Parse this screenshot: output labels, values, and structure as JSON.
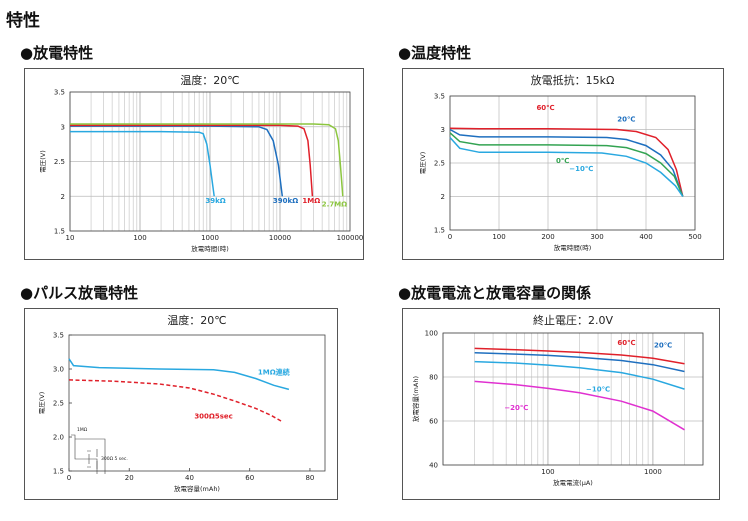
{
  "page": {
    "title": "特性"
  },
  "sections": [
    {
      "heading": "●放電特性"
    },
    {
      "heading": "●温度特性"
    },
    {
      "heading": "●パルス放電特性"
    },
    {
      "heading": "●放電電流と放電容量の関係"
    }
  ],
  "chart_data": [
    {
      "type": "line",
      "title": "温度：20℃",
      "xlabel": "放電時間(時)",
      "ylabel": "電圧(V)",
      "xscale": "log",
      "xlim": [
        10,
        100000
      ],
      "ylim": [
        1.5,
        3.5
      ],
      "xticks": [
        10,
        100,
        1000,
        10000,
        100000
      ],
      "xtick_labels": [
        "10",
        "100",
        "1000",
        "10000",
        "100000"
      ],
      "yticks": [
        1.5,
        2,
        2.5,
        3,
        3.5
      ],
      "ytick_labels": [
        "1.5",
        "2",
        "2.5",
        "3",
        "3.5"
      ],
      "grid": true,
      "series": [
        {
          "name": "39kΩ",
          "color": "#29a8e0",
          "label_at": [
            1200,
            1.9
          ],
          "points": [
            [
              10,
              2.93
            ],
            [
              200,
              2.93
            ],
            [
              700,
              2.92
            ],
            [
              800,
              2.9
            ],
            [
              900,
              2.75
            ],
            [
              1000,
              2.45
            ],
            [
              1150,
              2.0
            ]
          ]
        },
        {
          "name": "390kΩ",
          "color": "#1e6fbf",
          "label_at": [
            12000,
            1.9
          ],
          "points": [
            [
              10,
              3.01
            ],
            [
              1000,
              3.01
            ],
            [
              5000,
              3.0
            ],
            [
              6500,
              2.96
            ],
            [
              8000,
              2.8
            ],
            [
              9500,
              2.45
            ],
            [
              10800,
              2.0
            ]
          ]
        },
        {
          "name": "1MΩ",
          "color": "#e0202a",
          "label_at": [
            28000,
            1.9
          ],
          "points": [
            [
              10,
              3.02
            ],
            [
              10000,
              3.02
            ],
            [
              18000,
              3.01
            ],
            [
              22000,
              2.97
            ],
            [
              25000,
              2.8
            ],
            [
              27000,
              2.45
            ],
            [
              29000,
              2.0
            ]
          ]
        },
        {
          "name": "2.7MΩ",
          "color": "#8cc63f",
          "label_at": [
            60000,
            1.85
          ],
          "points": [
            [
              10,
              3.04
            ],
            [
              30000,
              3.04
            ],
            [
              50000,
              3.03
            ],
            [
              62000,
              2.97
            ],
            [
              68000,
              2.8
            ],
            [
              73000,
              2.45
            ],
            [
              79000,
              2.0
            ]
          ]
        }
      ]
    },
    {
      "type": "line",
      "title": "放電抵抗：15kΩ",
      "xlabel": "放電時間(時)",
      "ylabel": "電圧(V)",
      "xlim": [
        0,
        500
      ],
      "ylim": [
        1.5,
        3.5
      ],
      "xticks": [
        0,
        100,
        200,
        300,
        400,
        500
      ],
      "xtick_labels": [
        "0",
        "100",
        "200",
        "300",
        "400",
        "500"
      ],
      "yticks": [
        1.5,
        2,
        2.5,
        3,
        3.5
      ],
      "ytick_labels": [
        "1.5",
        "2",
        "2.5",
        "3",
        "3.5"
      ],
      "grid": true,
      "series": [
        {
          "name": "60℃",
          "color": "#e0202a",
          "label_at": [
            195,
            3.29
          ],
          "points": [
            [
              0,
              3.02
            ],
            [
              60,
              3.01
            ],
            [
              200,
              3.01
            ],
            [
              340,
              3.0
            ],
            [
              380,
              2.97
            ],
            [
              420,
              2.88
            ],
            [
              445,
              2.7
            ],
            [
              462,
              2.4
            ],
            [
              475,
              2.0
            ]
          ]
        },
        {
          "name": "20℃",
          "color": "#1e6fbf",
          "label_at": [
            360,
            3.12
          ],
          "points": [
            [
              0,
              3.0
            ],
            [
              20,
              2.92
            ],
            [
              60,
              2.89
            ],
            [
              200,
              2.89
            ],
            [
              320,
              2.88
            ],
            [
              360,
              2.85
            ],
            [
              400,
              2.76
            ],
            [
              430,
              2.62
            ],
            [
              455,
              2.4
            ],
            [
              475,
              2.0
            ]
          ]
        },
        {
          "name": "0℃",
          "color": "#33a352",
          "label_at": [
            230,
            2.5
          ],
          "points": [
            [
              0,
              2.95
            ],
            [
              20,
              2.82
            ],
            [
              60,
              2.77
            ],
            [
              200,
              2.77
            ],
            [
              320,
              2.76
            ],
            [
              360,
              2.73
            ],
            [
              400,
              2.64
            ],
            [
              430,
              2.5
            ],
            [
              458,
              2.3
            ],
            [
              475,
              2.0
            ]
          ]
        },
        {
          "name": "−10℃",
          "color": "#29a8e0",
          "label_at": [
            268,
            2.38
          ],
          "points": [
            [
              0,
              2.88
            ],
            [
              20,
              2.72
            ],
            [
              60,
              2.66
            ],
            [
              200,
              2.66
            ],
            [
              310,
              2.65
            ],
            [
              360,
              2.6
            ],
            [
              400,
              2.5
            ],
            [
              430,
              2.36
            ],
            [
              460,
              2.16
            ],
            [
              475,
              2.0
            ]
          ]
        }
      ]
    },
    {
      "type": "line",
      "title": "温度：20℃",
      "xlabel": "放電容量(mAh)",
      "ylabel": "電圧(V)",
      "xlim": [
        0,
        85
      ],
      "ylim": [
        1.5,
        3.5
      ],
      "xticks": [
        0,
        20,
        40,
        60,
        80
      ],
      "xtick_labels": [
        "0",
        "20",
        "40",
        "60",
        "80"
      ],
      "yticks": [
        1.5,
        2.0,
        2.5,
        3.0,
        3.5
      ],
      "ytick_labels": [
        "1.5",
        "2.0",
        "2.5",
        "3.0",
        "3.5"
      ],
      "grid": false,
      "inset": {
        "resistor_label": "1MΩ",
        "pulse_label": "300Ω 5 sec."
      },
      "series": [
        {
          "name": "1MΩ連続",
          "color": "#29a8e0",
          "label_at": [
            68,
            2.92
          ],
          "points": [
            [
              0,
              3.15
            ],
            [
              1.5,
              3.05
            ],
            [
              10,
              3.02
            ],
            [
              30,
              3.0
            ],
            [
              48,
              2.99
            ],
            [
              55,
              2.95
            ],
            [
              62,
              2.86
            ],
            [
              68,
              2.76
            ],
            [
              73,
              2.7
            ]
          ]
        },
        {
          "name": "300Ω5sec",
          "color": "#e0202a",
          "dashed": true,
          "label_at": [
            48,
            2.27
          ],
          "points": [
            [
              0,
              2.84
            ],
            [
              15,
              2.82
            ],
            [
              30,
              2.78
            ],
            [
              40,
              2.72
            ],
            [
              48,
              2.63
            ],
            [
              55,
              2.53
            ],
            [
              62,
              2.42
            ],
            [
              67,
              2.32
            ],
            [
              71,
              2.22
            ]
          ]
        }
      ]
    },
    {
      "type": "line",
      "title": "終止電圧：2.0V",
      "xlabel": "放電電流(μA)",
      "ylabel": "放電容量(mAh)",
      "xscale": "log",
      "xlim": [
        10,
        3000
      ],
      "ylim": [
        40,
        100
      ],
      "xticks": [
        100,
        1000
      ],
      "xtick_labels": [
        "100",
        "1000"
      ],
      "yticks": [
        40,
        60,
        80,
        100
      ],
      "ytick_labels": [
        "40",
        "60",
        "80",
        "100"
      ],
      "grid": true,
      "series": [
        {
          "name": "60℃",
          "color": "#e0202a",
          "label_at": [
            560,
            94.5
          ],
          "points": [
            [
              20,
              93
            ],
            [
              50,
              92.4
            ],
            [
              100,
              91.8
            ],
            [
              200,
              91.2
            ],
            [
              500,
              90
            ],
            [
              1000,
              88.5
            ],
            [
              2000,
              86
            ]
          ]
        },
        {
          "name": "20℃",
          "color": "#1e6fbf",
          "label_at": [
            1250,
            93.5
          ],
          "points": [
            [
              20,
              91
            ],
            [
              50,
              90.4
            ],
            [
              100,
              89.8
            ],
            [
              200,
              89
            ],
            [
              500,
              87.5
            ],
            [
              1000,
              85.6
            ],
            [
              2000,
              82.5
            ]
          ]
        },
        {
          "name": "−10℃",
          "color": "#29a8e0",
          "label_at": [
            300,
            73.5
          ],
          "points": [
            [
              20,
              87
            ],
            [
              50,
              86.3
            ],
            [
              100,
              85.4
            ],
            [
              200,
              84.2
            ],
            [
              500,
              82
            ],
            [
              1000,
              79
            ],
            [
              2000,
              74.5
            ]
          ]
        },
        {
          "name": "−20℃",
          "color": "#e030d0",
          "label_at": [
            50,
            65
          ],
          "points": [
            [
              20,
              78
            ],
            [
              50,
              76.5
            ],
            [
              100,
              74.8
            ],
            [
              200,
              72.8
            ],
            [
              500,
              69
            ],
            [
              1000,
              64.5
            ],
            [
              2000,
              56
            ]
          ]
        }
      ]
    }
  ]
}
